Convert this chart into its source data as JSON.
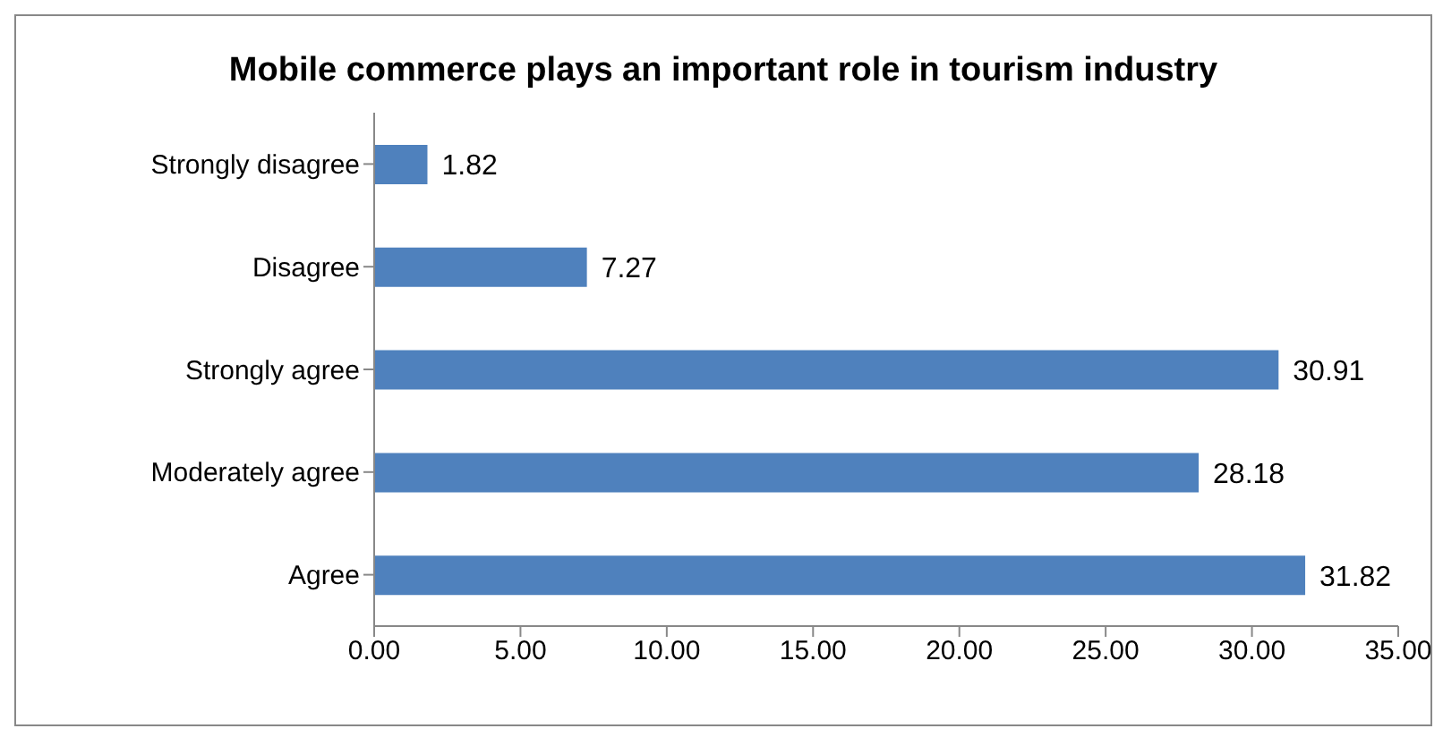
{
  "chart_data": {
    "type": "bar",
    "orientation": "horizontal",
    "title": "Mobile commerce plays an important role in tourism industry",
    "categories": [
      "Strongly disagree",
      "Disagree",
      "Strongly agree",
      "Moderately agree",
      "Agree"
    ],
    "values": [
      1.82,
      7.27,
      30.91,
      28.18,
      31.82
    ],
    "color": "#4f81bd",
    "data_labels": true,
    "grid": false,
    "legend": false,
    "xlim": [
      0,
      35
    ],
    "xticks": [
      {
        "value": 0,
        "label": "0.00"
      },
      {
        "value": 5,
        "label": "5.00"
      },
      {
        "value": 10,
        "label": "10.00"
      },
      {
        "value": 15,
        "label": "15.00"
      },
      {
        "value": 20,
        "label": "20.00"
      },
      {
        "value": 25,
        "label": "25.00"
      },
      {
        "value": 30,
        "label": "30.00"
      },
      {
        "value": 35,
        "label": "35.00"
      }
    ]
  }
}
